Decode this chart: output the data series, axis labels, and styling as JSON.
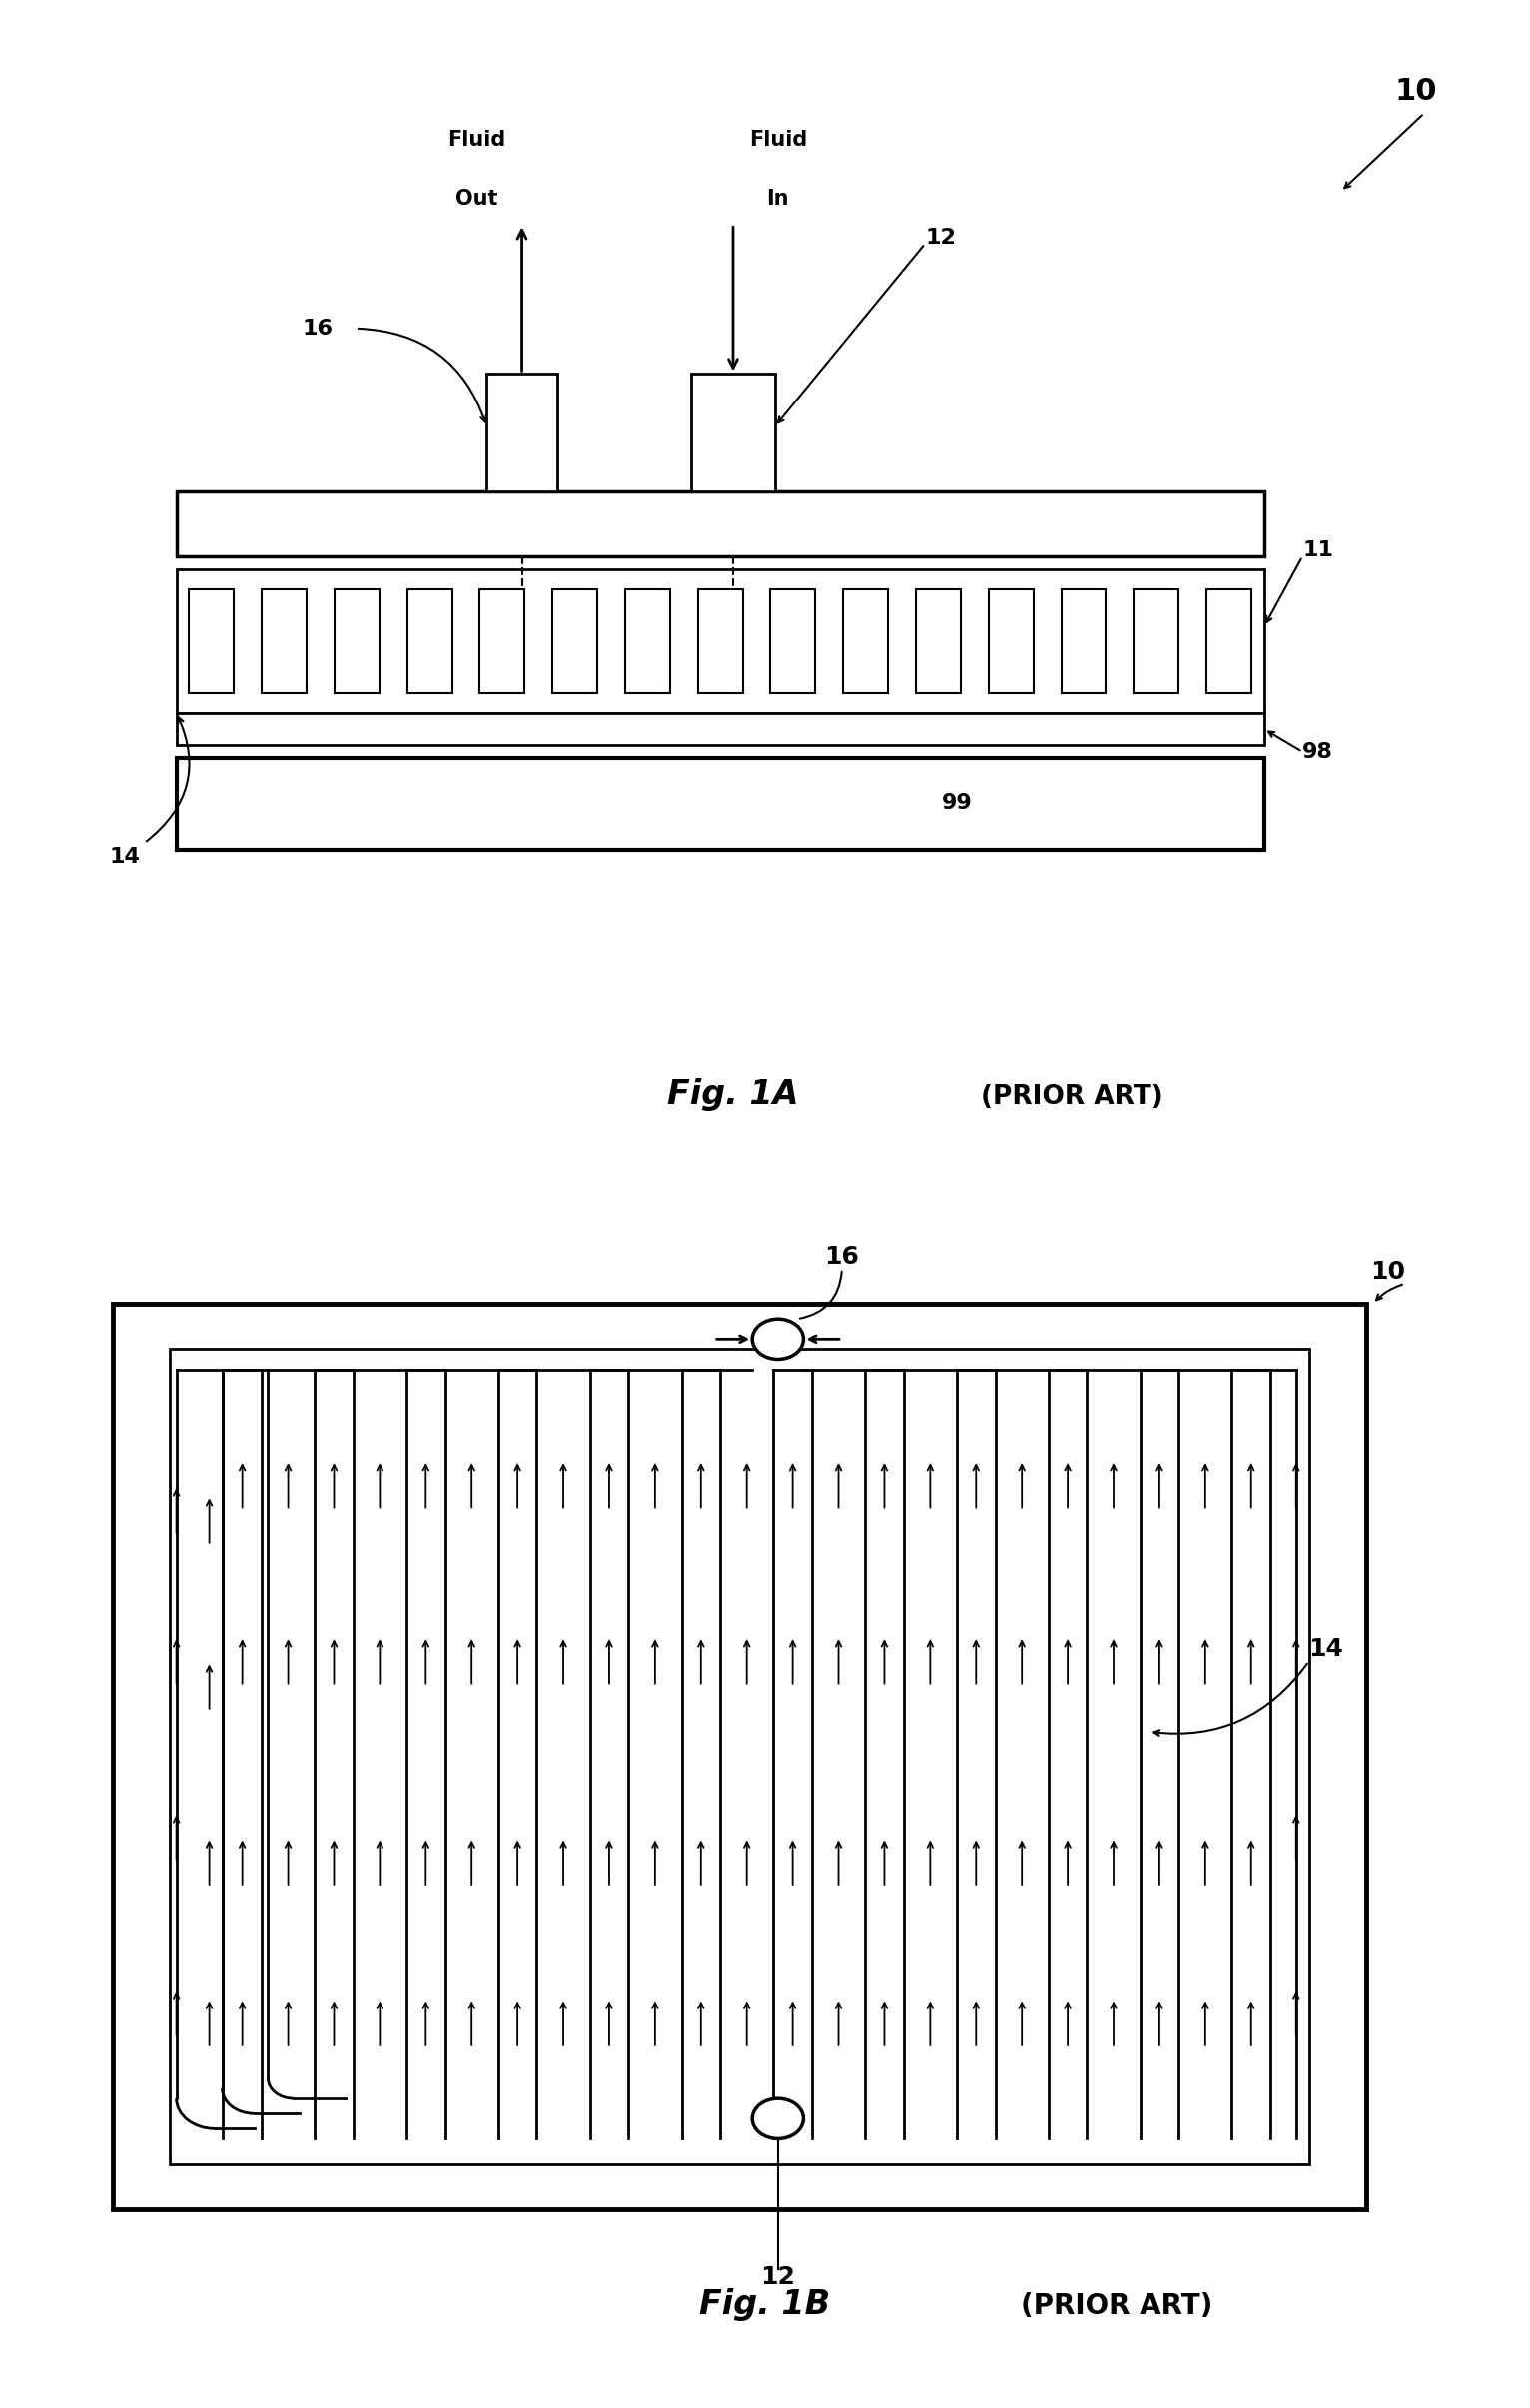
{
  "bg": "#ffffff",
  "lc": "#000000",
  "fig1a_label": "Fig. 1A",
  "fig1b_label": "Fig. 1B",
  "prior_art": "(PRIOR ART)"
}
